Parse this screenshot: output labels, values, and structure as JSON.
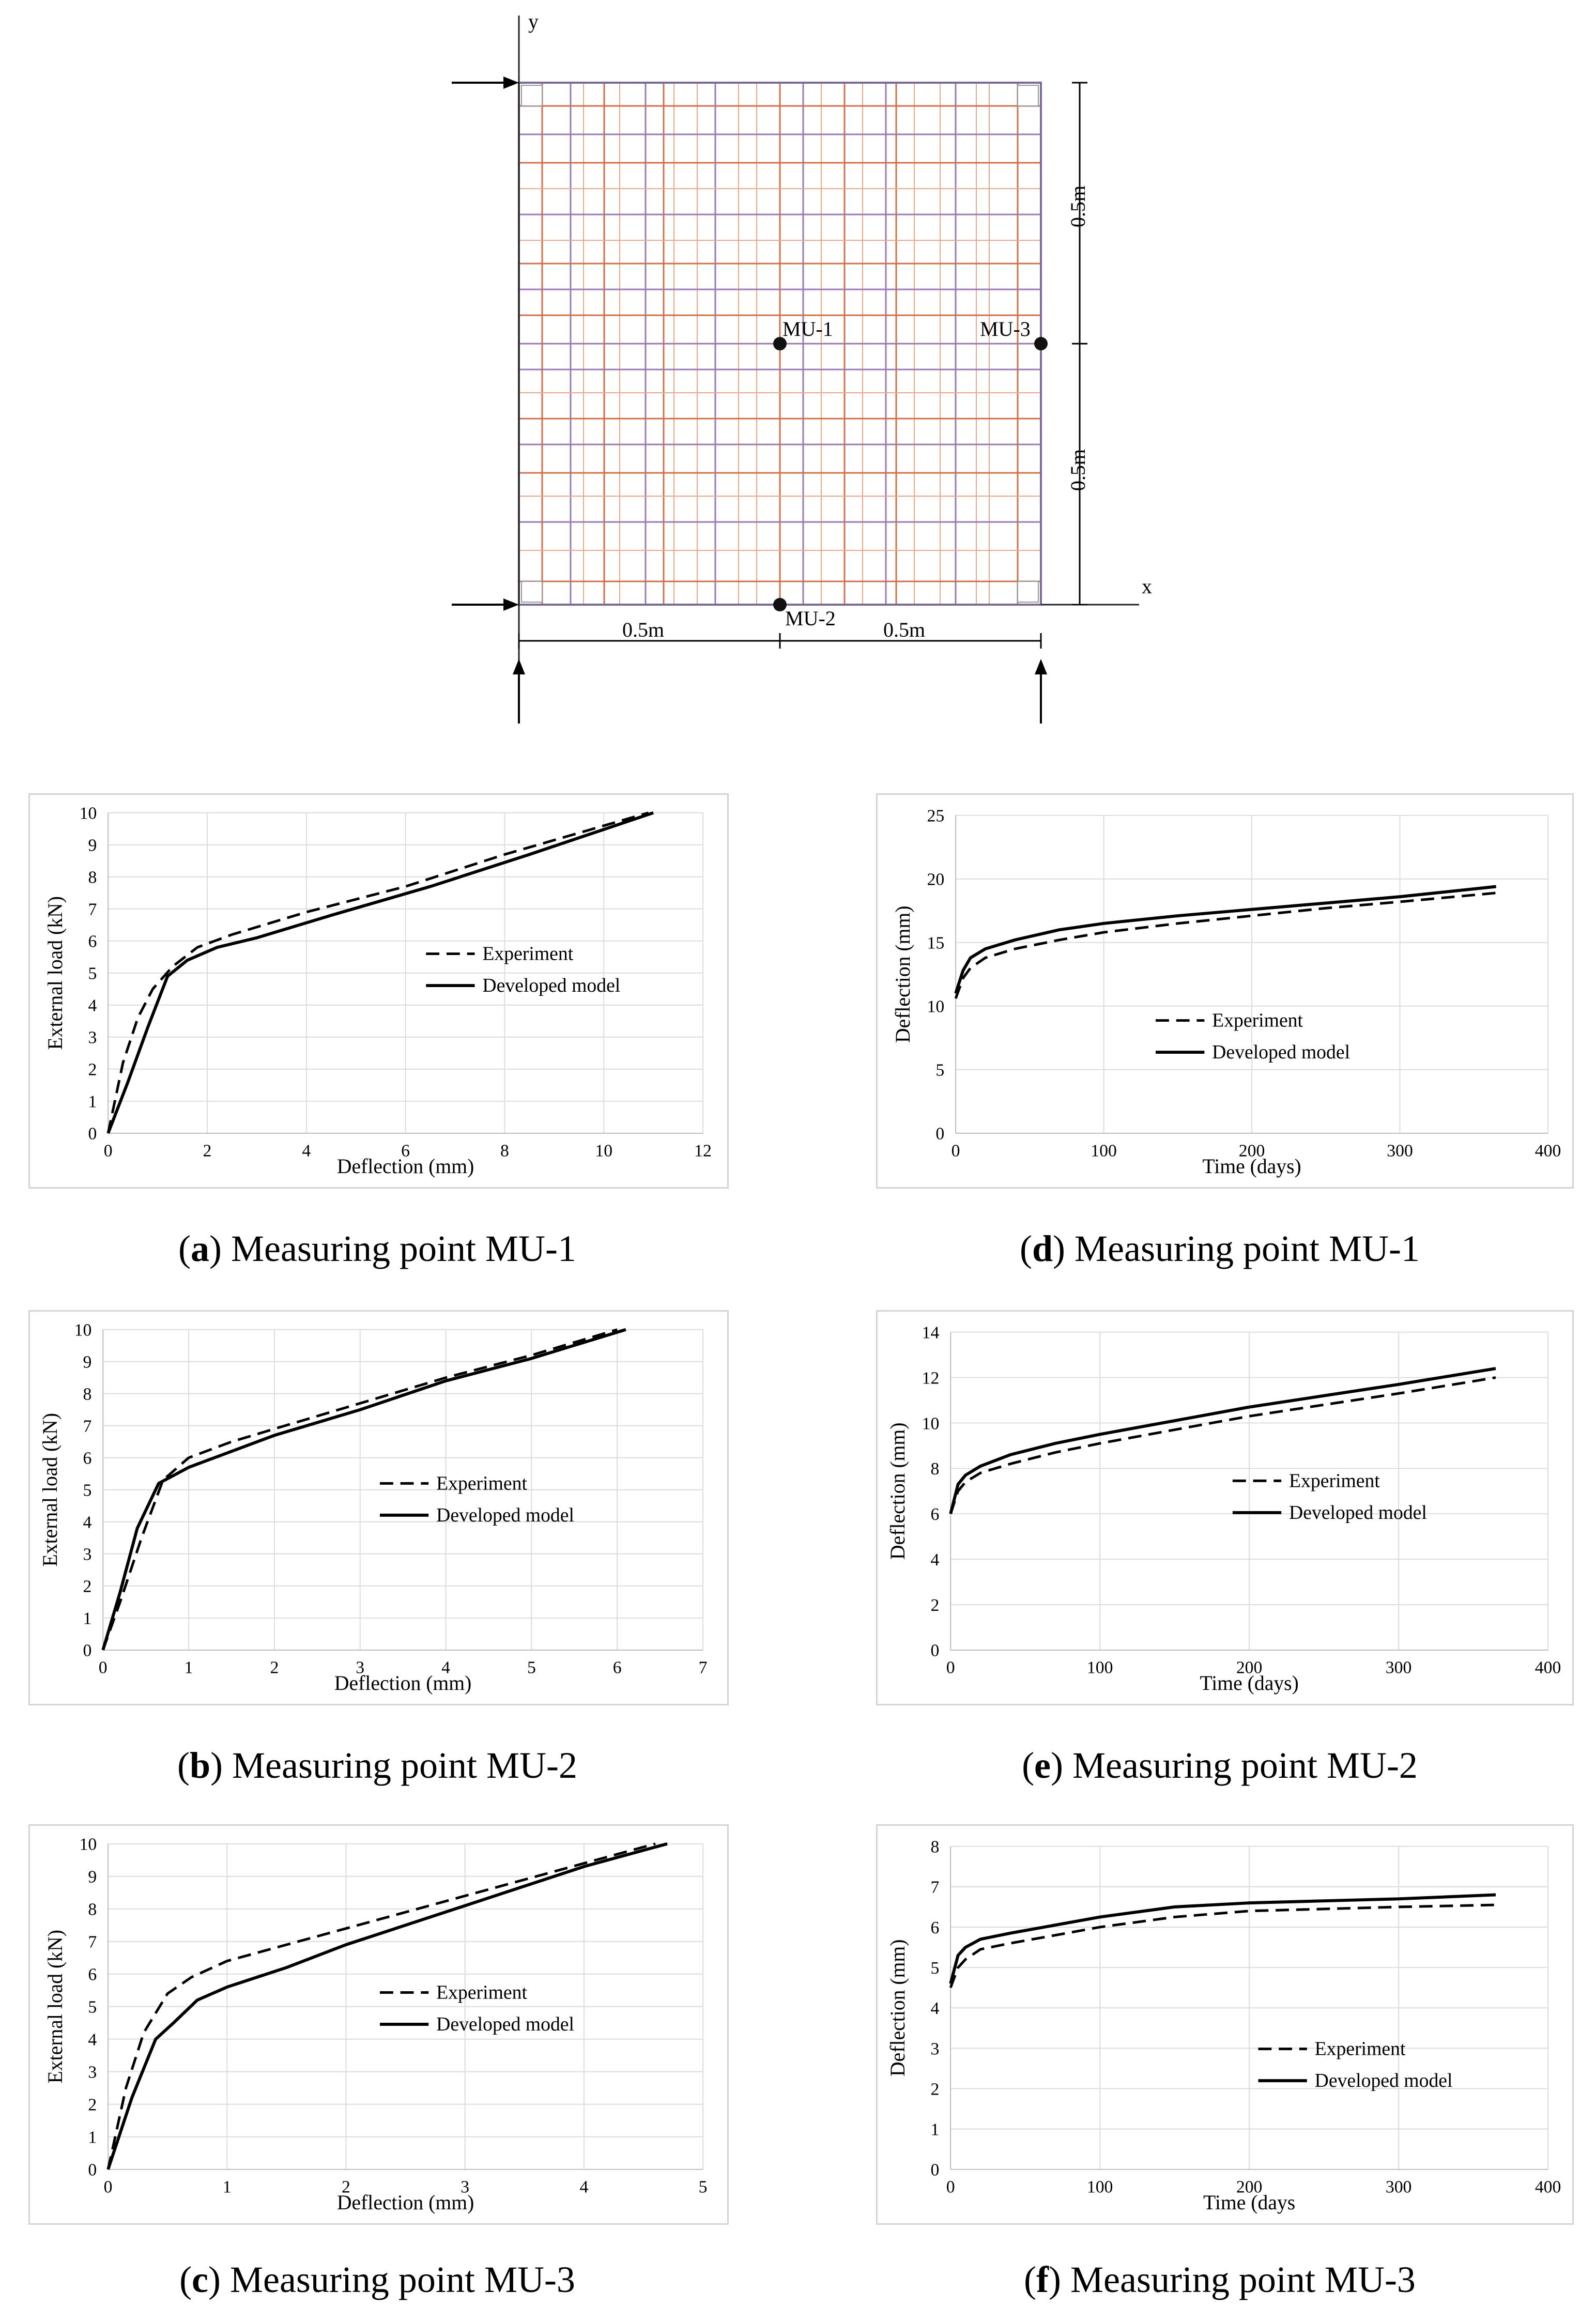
{
  "diagram": {
    "axis_y_label": "y",
    "axis_x_label": "x",
    "points": [
      "MU-1",
      "MU-2",
      "MU-3"
    ],
    "dimension_x": [
      "0.5m",
      "0.5m"
    ],
    "dimension_y": [
      "0.5m",
      "0.5m"
    ],
    "grid_color_fine": "#e8a88a",
    "grid_color_coarse": "#9a7ab0",
    "grid_color_red": "#d0704a"
  },
  "captions": {
    "a": {
      "letter": "a",
      "text": "Measuring point MU-1"
    },
    "b": {
      "letter": "b",
      "text": "Measuring point MU-2"
    },
    "c": {
      "letter": "c",
      "text": "Measuring point MU-3"
    },
    "d": {
      "letter": "d",
      "text": "Measuring point MU-1"
    },
    "e": {
      "letter": "e",
      "text": "Measuring point MU-2"
    },
    "f": {
      "letter": "f",
      "text": "Measuring point MU-3"
    }
  },
  "chart_data": [
    {
      "id": "a",
      "type": "line",
      "xlabel": "Deflection (mm)",
      "ylabel": "External load (kN)",
      "xlim": [
        0,
        12
      ],
      "ylim": [
        0,
        10
      ],
      "xticks": [
        0,
        2,
        4,
        6,
        8,
        10,
        12
      ],
      "yticks": [
        0,
        1,
        2,
        3,
        4,
        5,
        6,
        7,
        8,
        9,
        10
      ],
      "grid": true,
      "legend": "center-right",
      "series": [
        {
          "name": "Experiment",
          "style": "dashed",
          "x": [
            0,
            0.3,
            0.6,
            0.9,
            1.3,
            1.8,
            2.5,
            4,
            6,
            8,
            10.9
          ],
          "y": [
            0,
            2.2,
            3.6,
            4.5,
            5.2,
            5.8,
            6.2,
            6.9,
            7.7,
            8.7,
            10
          ]
        },
        {
          "name": "Developed model",
          "style": "solid",
          "x": [
            0,
            0.4,
            0.8,
            1.2,
            1.6,
            2.2,
            3,
            4.5,
            6.5,
            8.5,
            11
          ],
          "y": [
            0,
            1.6,
            3.3,
            4.9,
            5.4,
            5.8,
            6.1,
            6.8,
            7.7,
            8.7,
            10
          ]
        }
      ]
    },
    {
      "id": "b",
      "type": "line",
      "xlabel": "Deflection (mm)",
      "ylabel": "External load (kN)",
      "xlim": [
        0,
        7
      ],
      "ylim": [
        0,
        10
      ],
      "xticks": [
        0,
        1,
        2,
        3,
        4,
        5,
        6,
        7
      ],
      "yticks": [
        0,
        1,
        2,
        3,
        4,
        5,
        6,
        7,
        8,
        9,
        10
      ],
      "grid": true,
      "legend": "center-right",
      "series": [
        {
          "name": "Experiment",
          "style": "dashed",
          "x": [
            0,
            0.2,
            0.45,
            0.7,
            1,
            1.5,
            2,
            3,
            4,
            5,
            6
          ],
          "y": [
            0,
            1.5,
            3.5,
            5.3,
            6,
            6.5,
            6.9,
            7.7,
            8.5,
            9.2,
            10
          ]
        },
        {
          "name": "Developed model",
          "style": "solid",
          "x": [
            0,
            0.2,
            0.4,
            0.65,
            1,
            1.5,
            2,
            3,
            4,
            5,
            6.1
          ],
          "y": [
            0,
            1.8,
            3.8,
            5.2,
            5.7,
            6.2,
            6.7,
            7.5,
            8.4,
            9.1,
            10
          ]
        }
      ]
    },
    {
      "id": "c",
      "type": "line",
      "xlabel": "Deflection (mm)",
      "ylabel": "External load (kN)",
      "xlim": [
        0,
        5
      ],
      "ylim": [
        0,
        10
      ],
      "xticks": [
        0,
        1,
        2,
        3,
        4,
        5
      ],
      "yticks": [
        0,
        1,
        2,
        3,
        4,
        5,
        6,
        7,
        8,
        9,
        10
      ],
      "grid": true,
      "legend": "center-right",
      "series": [
        {
          "name": "Experiment",
          "style": "dashed",
          "x": [
            0,
            0.15,
            0.3,
            0.5,
            0.7,
            1,
            1.5,
            2,
            3,
            4,
            4.6
          ],
          "y": [
            0,
            2.5,
            4.2,
            5.4,
            5.9,
            6.4,
            6.9,
            7.4,
            8.4,
            9.4,
            10
          ]
        },
        {
          "name": "Developed model",
          "style": "solid",
          "x": [
            0,
            0.2,
            0.4,
            0.55,
            0.75,
            1,
            1.5,
            2,
            3,
            4,
            4.7
          ],
          "y": [
            0,
            2.2,
            4,
            4.5,
            5.2,
            5.6,
            6.2,
            6.9,
            8.1,
            9.3,
            10
          ]
        }
      ]
    },
    {
      "id": "d",
      "type": "line",
      "xlabel": "Time (days)",
      "ylabel": "Deflection (mm)",
      "xlim": [
        0,
        400
      ],
      "ylim": [
        0,
        25
      ],
      "xticks": [
        0,
        100,
        200,
        300,
        400
      ],
      "yticks": [
        0,
        5,
        10,
        15,
        20,
        25
      ],
      "grid": true,
      "legend": "center",
      "series": [
        {
          "name": "Experiment",
          "style": "dashed",
          "x": [
            0,
            5,
            10,
            20,
            40,
            70,
            100,
            150,
            200,
            250,
            300,
            365
          ],
          "y": [
            10.6,
            12.2,
            13,
            13.8,
            14.5,
            15.2,
            15.8,
            16.5,
            17.1,
            17.7,
            18.2,
            18.9
          ]
        },
        {
          "name": "Developed model",
          "style": "solid",
          "x": [
            0,
            5,
            10,
            20,
            40,
            70,
            100,
            150,
            200,
            250,
            300,
            365
          ],
          "y": [
            11,
            12.8,
            13.8,
            14.5,
            15.2,
            16,
            16.5,
            17.1,
            17.6,
            18.1,
            18.6,
            19.4
          ]
        }
      ]
    },
    {
      "id": "e",
      "type": "line",
      "xlabel": "Time (days)",
      "ylabel": "Deflection (mm)",
      "xlim": [
        0,
        400
      ],
      "ylim": [
        0,
        14
      ],
      "xticks": [
        0,
        100,
        200,
        300,
        400
      ],
      "yticks": [
        0,
        2,
        4,
        6,
        8,
        10,
        12,
        14
      ],
      "grid": true,
      "legend": "center-right",
      "series": [
        {
          "name": "Experiment",
          "style": "dashed",
          "x": [
            0,
            5,
            10,
            20,
            40,
            70,
            100,
            150,
            200,
            250,
            300,
            365
          ],
          "y": [
            6,
            7,
            7.4,
            7.8,
            8.2,
            8.7,
            9.1,
            9.7,
            10.3,
            10.8,
            11.3,
            12
          ]
        },
        {
          "name": "Developed model",
          "style": "solid",
          "x": [
            0,
            5,
            10,
            20,
            40,
            70,
            100,
            150,
            200,
            250,
            300,
            365
          ],
          "y": [
            6,
            7.3,
            7.7,
            8.1,
            8.6,
            9.1,
            9.5,
            10.1,
            10.7,
            11.2,
            11.7,
            12.4
          ]
        }
      ]
    },
    {
      "id": "f",
      "type": "line",
      "xlabel": "Time (days",
      "ylabel": "Deflection (mm)",
      "xlim": [
        0,
        400
      ],
      "ylim": [
        0,
        8
      ],
      "xticks": [
        0,
        100,
        200,
        300,
        400
      ],
      "yticks": [
        0,
        1,
        2,
        3,
        4,
        5,
        6,
        7,
        8
      ],
      "grid": true,
      "legend": "lower-right",
      "series": [
        {
          "name": "Experiment",
          "style": "dashed",
          "x": [
            0,
            5,
            10,
            20,
            40,
            70,
            100,
            150,
            200,
            250,
            300,
            365
          ],
          "y": [
            4.5,
            5,
            5.2,
            5.45,
            5.6,
            5.8,
            6,
            6.25,
            6.4,
            6.45,
            6.5,
            6.55
          ]
        },
        {
          "name": "Developed model",
          "style": "solid",
          "x": [
            0,
            5,
            10,
            20,
            40,
            70,
            100,
            150,
            200,
            250,
            300,
            365
          ],
          "y": [
            4.6,
            5.3,
            5.5,
            5.7,
            5.85,
            6.05,
            6.25,
            6.5,
            6.6,
            6.65,
            6.7,
            6.8
          ]
        }
      ]
    }
  ]
}
